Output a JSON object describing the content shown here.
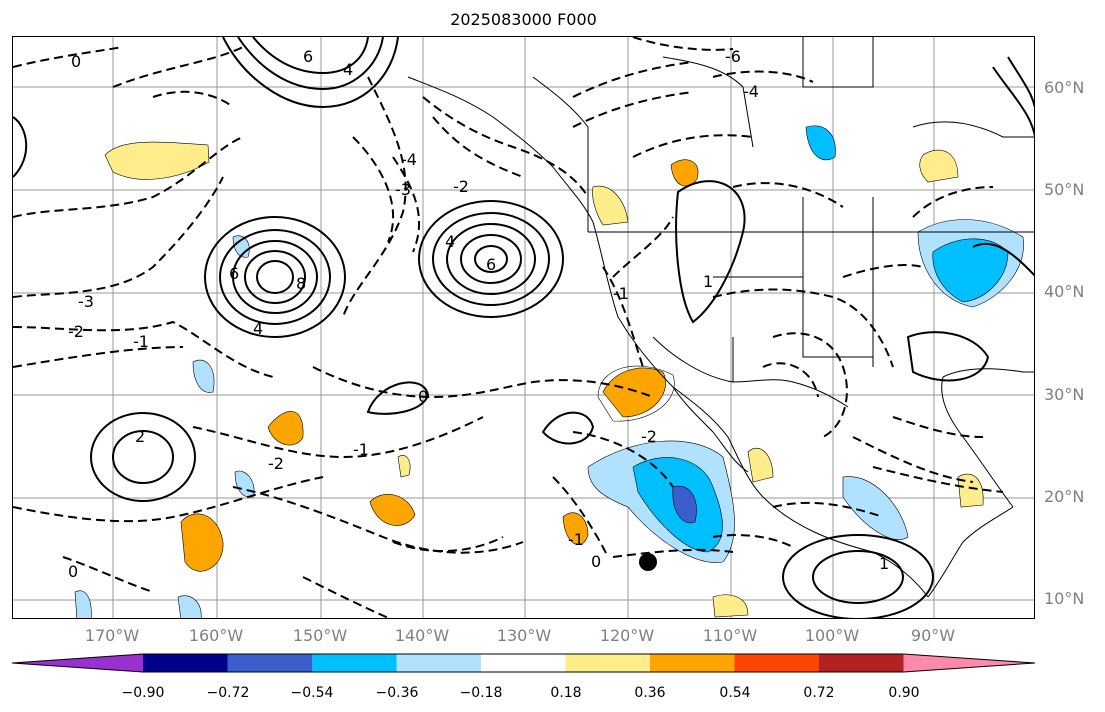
{
  "title": "2025083000 F000",
  "lat_labels": [
    "60°N",
    "50°N",
    "40°N",
    "30°N",
    "20°N",
    "10°N"
  ],
  "lon_labels": [
    "170°W",
    "160°W",
    "150°W",
    "140°W",
    "130°W",
    "120°W",
    "110°W",
    "100°W",
    "90°W"
  ],
  "contour_labels": {
    "pos_high_west": "8",
    "pos_high_west_2": "6",
    "pos_high_west_3": "4",
    "pos_high_mid": "6",
    "pos_high_mid_2": "4",
    "pos_high_north": "6",
    "pos_high_north_2": "4",
    "pos_tropical_west": "2",
    "neg_west_3": "-3",
    "neg_west_2": "-2",
    "neg_west_1": "-1",
    "neg_mid_1": "-1",
    "neg_mid_2": "-2",
    "neg_gulf_3": "-3",
    "neg_gulf_4": "-4",
    "neg_gulf_2": "-2",
    "neg_east_1": "-1",
    "neg_us_1": "1",
    "zero_1": "0",
    "zero_2": "0",
    "zero_3": "0",
    "zero_4": "0",
    "neg_sw_1": "-1",
    "neg_sw_2": "-2",
    "pos_caribbean": "1",
    "neg_north_4": "-4",
    "neg_north_6": "-6"
  },
  "colorbar": {
    "colors": [
      "#9b30d0",
      "#00008b",
      "#3a5fcd",
      "#00bfff",
      "#b0e2ff",
      "#ffffff",
      "#ffec8b",
      "#ffa500",
      "#ff4500",
      "#b22222",
      "#ff89aa"
    ],
    "labels": [
      "−0.90",
      "−0.72",
      "−0.54",
      "−0.36",
      "−0.18",
      "0.18",
      "0.36",
      "0.54",
      "0.72",
      "0.90"
    ]
  },
  "shading_colors": {
    "light_yellow": "#ffec8b",
    "orange": "#ffa500",
    "light_blue": "#b0e2ff",
    "blue": "#00bfff",
    "mid_blue": "#3a5fcd"
  }
}
